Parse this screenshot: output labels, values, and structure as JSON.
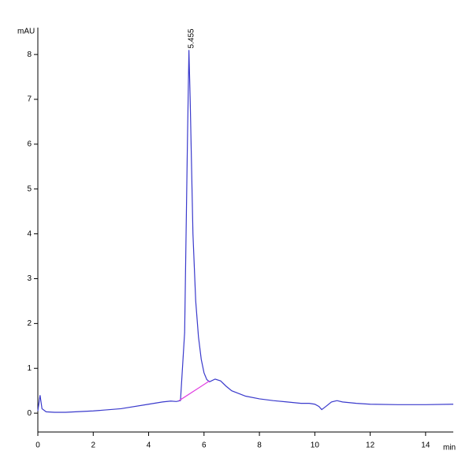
{
  "chart_data": {
    "type": "line",
    "ylabel": "mAU",
    "xlabel": "min",
    "x": [
      0,
      0.08,
      0.15,
      0.3,
      0.6,
      1,
      2,
      3,
      4,
      4.5,
      4.8,
      5.0,
      5.15,
      5.3,
      5.4,
      5.455,
      5.5,
      5.6,
      5.7,
      5.8,
      5.9,
      6.0,
      6.1,
      6.2,
      6.4,
      6.6,
      6.8,
      7,
      7.5,
      8,
      8.5,
      9,
      9.5,
      9.8,
      10,
      10.15,
      10.25,
      10.4,
      10.6,
      10.8,
      11,
      11.5,
      12,
      13,
      14,
      15
    ],
    "series": [
      {
        "color": "#3a3acc",
        "values": [
          0.05,
          0.4,
          0.1,
          0.03,
          0.02,
          0.02,
          0.05,
          0.1,
          0.2,
          0.25,
          0.27,
          0.26,
          0.28,
          1.8,
          6.0,
          8.1,
          7.0,
          4.0,
          2.5,
          1.7,
          1.2,
          0.9,
          0.75,
          0.7,
          0.76,
          0.72,
          0.6,
          0.5,
          0.38,
          0.32,
          0.28,
          0.25,
          0.22,
          0.22,
          0.2,
          0.15,
          0.08,
          0.15,
          0.25,
          0.28,
          0.25,
          0.22,
          0.2,
          0.19,
          0.19,
          0.2
        ]
      }
    ],
    "baseline": {
      "color": "#e03ce0",
      "x": [
        5.1,
        6.2
      ],
      "y": [
        0.28,
        0.72
      ]
    },
    "peak_annotation": {
      "x": 5.455,
      "y": 8.1,
      "label": "5.455"
    },
    "xlim": [
      0,
      15
    ],
    "ylim": [
      -0.42,
      8.6
    ],
    "xticks": [
      0,
      2,
      4,
      6,
      8,
      10,
      12,
      14
    ],
    "yticks": [
      0,
      1,
      2,
      3,
      4,
      5,
      6,
      7,
      8
    ]
  }
}
